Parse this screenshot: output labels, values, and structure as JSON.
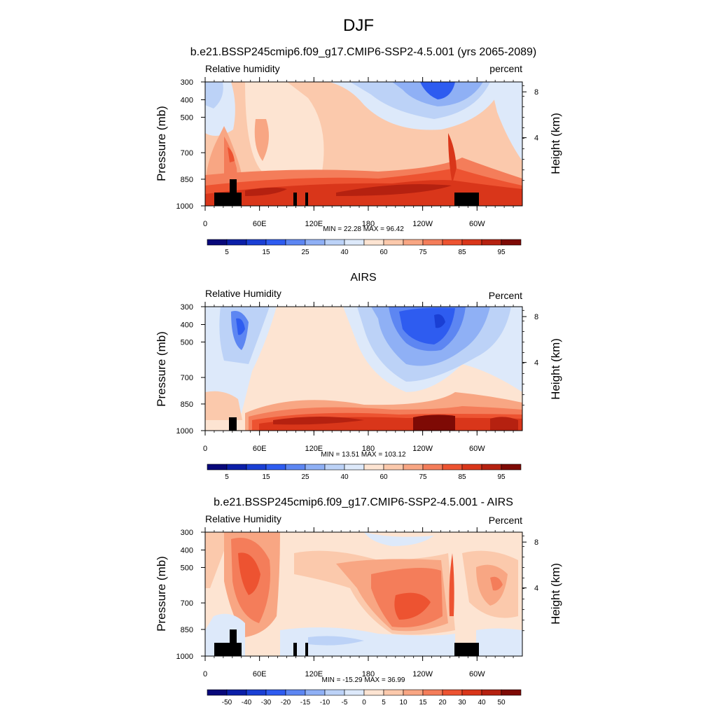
{
  "figure": {
    "title": "DJF"
  },
  "chart_data": [
    {
      "type": "heatmap",
      "title": "b.e21.BSSP245cmip6.f09_g17.CMIP6-SSP2-4.5.001 (yrs 2065-2089)",
      "left_label": "Relative humidity",
      "right_label": "percent",
      "ylabel": "Pressure (mb)",
      "y2label": "Height (km)",
      "x_ticks": [
        "0",
        "60E",
        "120E",
        "180",
        "120W",
        "60W"
      ],
      "x_range": [
        0,
        350
      ],
      "y_ticks": [
        "300",
        "400",
        "500",
        "700",
        "850",
        "1000"
      ],
      "y2_ticks": [
        "8",
        "4"
      ],
      "min_max": "MIN =  22.28  MAX =  96.42",
      "colorbar": {
        "labels": [
          "5",
          "15",
          "25",
          "40",
          "60",
          "75",
          "85",
          "95"
        ],
        "colors": [
          "#08087a",
          "#0b1fa8",
          "#1a3fd4",
          "#2e5cf0",
          "#5d86f2",
          "#8fb0f5",
          "#bcd2f7",
          "#dde9fa",
          "#fde4d2",
          "#fbc9ac",
          "#f8a683",
          "#f47d5a",
          "#ed5331",
          "#d9361a",
          "#b52110",
          "#7e0a05"
        ]
      },
      "stats": {
        "min": 22.28,
        "max": 96.42
      }
    },
    {
      "type": "heatmap",
      "title": "AIRS",
      "left_label": "Relative Humidity",
      "right_label": "Percent",
      "ylabel": "Pressure (mb)",
      "y2label": "Height (km)",
      "x_ticks": [
        "0",
        "60E",
        "120E",
        "180",
        "120W",
        "60W"
      ],
      "x_range": [
        0,
        350
      ],
      "y_ticks": [
        "300",
        "400",
        "500",
        "700",
        "850",
        "1000"
      ],
      "y2_ticks": [
        "8",
        "4"
      ],
      "min_max": "MIN =  13.51  MAX = 103.12",
      "colorbar": {
        "labels": [
          "5",
          "15",
          "25",
          "40",
          "60",
          "75",
          "85",
          "95"
        ],
        "colors": [
          "#08087a",
          "#0b1fa8",
          "#1a3fd4",
          "#2e5cf0",
          "#5d86f2",
          "#8fb0f5",
          "#bcd2f7",
          "#dde9fa",
          "#fde4d2",
          "#fbc9ac",
          "#f8a683",
          "#f47d5a",
          "#ed5331",
          "#d9361a",
          "#b52110",
          "#7e0a05"
        ]
      },
      "stats": {
        "min": 13.51,
        "max": 103.12
      }
    },
    {
      "type": "heatmap",
      "title": "b.e21.BSSP245cmip6.f09_g17.CMIP6-SSP2-4.5.001 - AIRS",
      "left_label": "Relative Humidity",
      "right_label": "Percent",
      "ylabel": "Pressure (mb)",
      "y2label": "Height (km)",
      "x_ticks": [
        "0",
        "60E",
        "120E",
        "180",
        "120W",
        "60W"
      ],
      "x_range": [
        0,
        350
      ],
      "y_ticks": [
        "300",
        "400",
        "500",
        "700",
        "850",
        "1000"
      ],
      "y2_ticks": [
        "8",
        "4"
      ],
      "min_max": "MIN = -15.29  MAX =  36.99",
      "colorbar": {
        "labels": [
          "-50",
          "-40",
          "-30",
          "-20",
          "-15",
          "-10",
          "-5",
          "0",
          "5",
          "10",
          "15",
          "20",
          "30",
          "40",
          "50"
        ],
        "colors": [
          "#08087a",
          "#0b1fa8",
          "#1a3fd4",
          "#2e5cf0",
          "#5d86f2",
          "#8fb0f5",
          "#bcd2f7",
          "#dde9fa",
          "#fde4d2",
          "#fbc9ac",
          "#f8a683",
          "#f47d5a",
          "#ed5331",
          "#d9361a",
          "#b52110",
          "#7e0a05"
        ]
      },
      "stats": {
        "min": -15.29,
        "max": 36.99
      }
    }
  ]
}
